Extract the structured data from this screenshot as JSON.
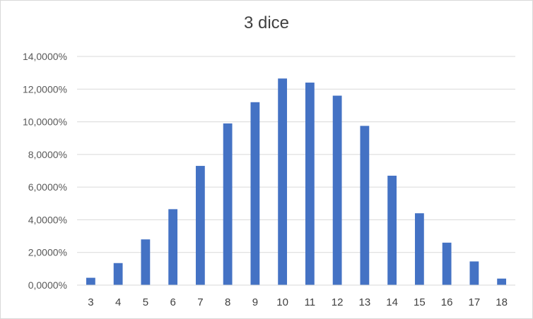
{
  "chart_data": {
    "type": "bar",
    "title": "3 dice",
    "xlabel": "",
    "ylabel": "",
    "categories": [
      "3",
      "4",
      "5",
      "6",
      "7",
      "8",
      "9",
      "10",
      "11",
      "12",
      "13",
      "14",
      "15",
      "16",
      "17",
      "18"
    ],
    "values": [
      0.45,
      1.35,
      2.8,
      4.65,
      7.3,
      9.9,
      11.2,
      12.65,
      12.4,
      11.6,
      9.75,
      6.7,
      4.4,
      2.6,
      1.45,
      0.4
    ],
    "ylim": [
      0,
      14
    ],
    "yticks": [
      0,
      2,
      4,
      6,
      8,
      10,
      12,
      14
    ],
    "ytick_labels": [
      "0,0000%",
      "2,0000%",
      "4,0000%",
      "6,0000%",
      "8,0000%",
      "10,0000%",
      "12,0000%",
      "14,0000%"
    ],
    "grid": true,
    "legend": "none",
    "bar_color": "#4472C4",
    "grid_color": "#d9d9d9"
  }
}
